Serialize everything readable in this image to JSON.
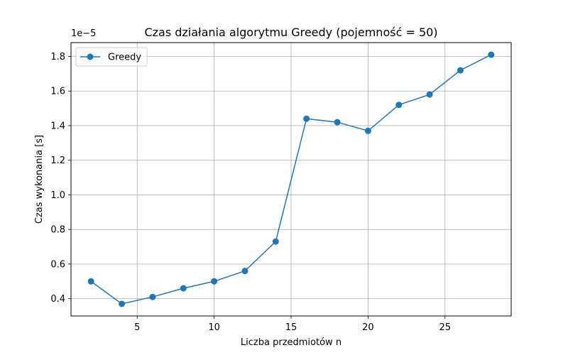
{
  "chart_data": {
    "type": "line",
    "title": "Czas działania algorytmu Greedy (pojemność = 50)",
    "xlabel": "Liczba przedmiotów n",
    "ylabel": "Czas wykonania [s]",
    "y_offset_label": "1e−5",
    "xlim": [
      0.7,
      29.3
    ],
    "ylim": [
      0.3,
      1.88
    ],
    "x_ticks": [
      5,
      10,
      15,
      20,
      25
    ],
    "x_tick_labels": [
      "5",
      "10",
      "15",
      "20",
      "25"
    ],
    "y_ticks": [
      0.4,
      0.6,
      0.8,
      1.0,
      1.2,
      1.4,
      1.6,
      1.8
    ],
    "y_tick_labels": [
      "0.4",
      "0.6",
      "0.8",
      "1.0",
      "1.2",
      "1.4",
      "1.6",
      "1.8"
    ],
    "grid": true,
    "legend_position": "top-left",
    "colors": {
      "series": "#1f77b4",
      "grid": "#b0b0b0",
      "axes": "#000000"
    },
    "series": [
      {
        "name": "Greedy",
        "marker": "circle",
        "x": [
          2,
          4,
          6,
          8,
          10,
          12,
          14,
          16,
          18,
          20,
          22,
          24,
          26,
          28
        ],
        "y": [
          0.5,
          0.37,
          0.41,
          0.46,
          0.5,
          0.56,
          0.73,
          1.44,
          1.42,
          1.37,
          1.52,
          1.58,
          1.72,
          1.81
        ]
      }
    ]
  }
}
